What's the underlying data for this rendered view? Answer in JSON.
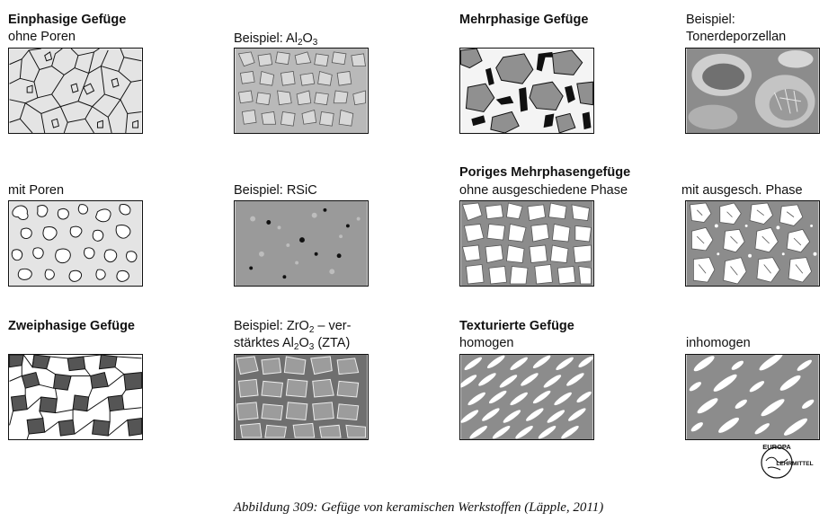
{
  "labels": {
    "einphasig_title": "Einphasige Gefüge",
    "einphasig_sub": "ohne Poren",
    "beispiel_al2o3_prefix": "Beispiel: Al",
    "beispiel_al2o3_sub1": "2",
    "beispiel_al2o3_mid": "O",
    "beispiel_al2o3_sub2": "3",
    "mehrphasig_title": "Mehrphasige Gefüge",
    "beispiel_toner_l1": "Beispiel:",
    "beispiel_toner_l2": "Tonerdeporzellan",
    "mit_poren": "mit Poren",
    "beispiel_rsic": "Beispiel: RSiC",
    "poriges_title": "Poriges Mehrphasengefüge",
    "poriges_sub": "ohne ausgeschiedene Phase",
    "mit_ausgesch": "mit ausgesch. Phase",
    "zweiphasig_title": "Zweiphasige Gefüge",
    "zta_l1_a": "Beispiel: ZrO",
    "zta_l1_sub": "2",
    "zta_l1_b": " – ver-",
    "zta_l2_a": "stärktes Al",
    "zta_l2_sub1": "2",
    "zta_l2_mid": "O",
    "zta_l2_sub2": "3",
    "zta_l2_b": " (ZTA)",
    "texturiert_title": "Texturierte Gefüge",
    "texturiert_sub": "homogen",
    "inhomogen": "inhomogen"
  },
  "logo": {
    "top": "EUROPA",
    "bottom": "LEHRMITTEL"
  },
  "caption": "Abbildung 309: Gefüge von keramischen Werkstoffen (Läpple, 2011)"
}
